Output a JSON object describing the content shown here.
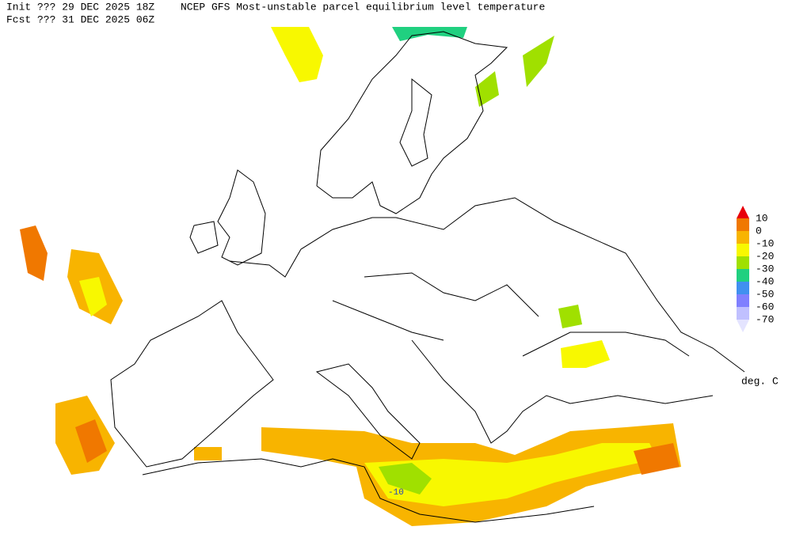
{
  "header": {
    "init": "Init  ??? 29 DEC 2025 18Z",
    "fcst": "Fcst ??? 31 DEC 2025 06Z",
    "title": "NCEP GFS Most-unstable parcel equilibrium level temperature"
  },
  "legend": {
    "labels": [
      "10",
      "0",
      "-10",
      "-20",
      "-30",
      "-40",
      "-50",
      "-60",
      "-70"
    ],
    "colors": [
      "#e8000b",
      "#f07800",
      "#f8b400",
      "#f8f800",
      "#a0e000",
      "#20d080",
      "#4090f0",
      "#8080ff",
      "#c0c0ff",
      "#e4e4ff"
    ],
    "unit": "deg. C"
  },
  "map": {
    "contour_label": "-10"
  }
}
